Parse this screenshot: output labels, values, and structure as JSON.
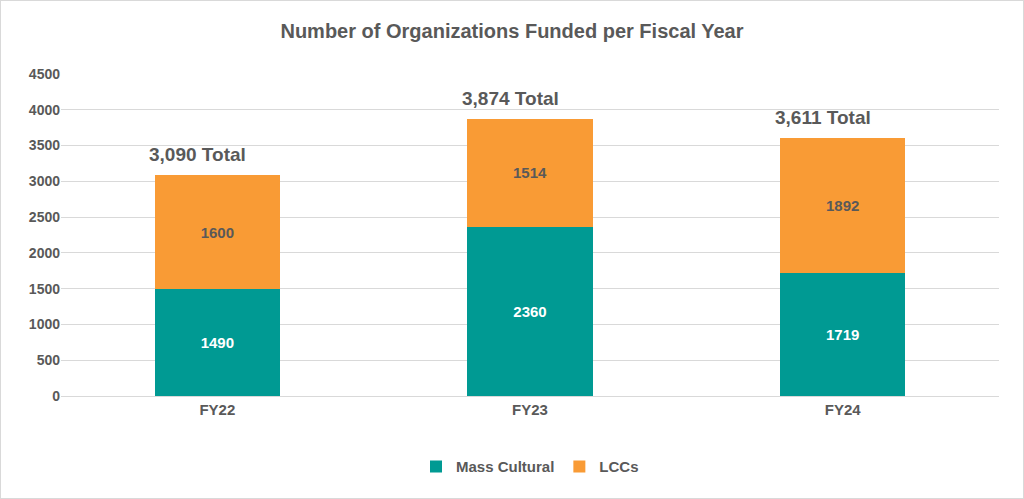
{
  "chart_data": {
    "type": "bar",
    "title": "Number of Organizations Funded per Fiscal Year",
    "categories": [
      "FY22",
      "FY23",
      "FY24"
    ],
    "series": [
      {
        "name": "Mass Cultural",
        "color": "#009A93",
        "values": [
          1490,
          2360,
          1719
        ]
      },
      {
        "name": "LCCs",
        "color": "#F99B35",
        "values": [
          1600,
          1514,
          1892
        ]
      }
    ],
    "annotations": [
      "3,090 Total",
      "3,874 Total",
      "3,611 Total"
    ],
    "ylim": [
      0,
      4500
    ],
    "yticks": [
      0,
      500,
      1000,
      1500,
      2000,
      2500,
      3000,
      3500,
      4000,
      4500
    ],
    "grid": true,
    "stacked": true,
    "data_labels": true,
    "legend": "bottom"
  }
}
